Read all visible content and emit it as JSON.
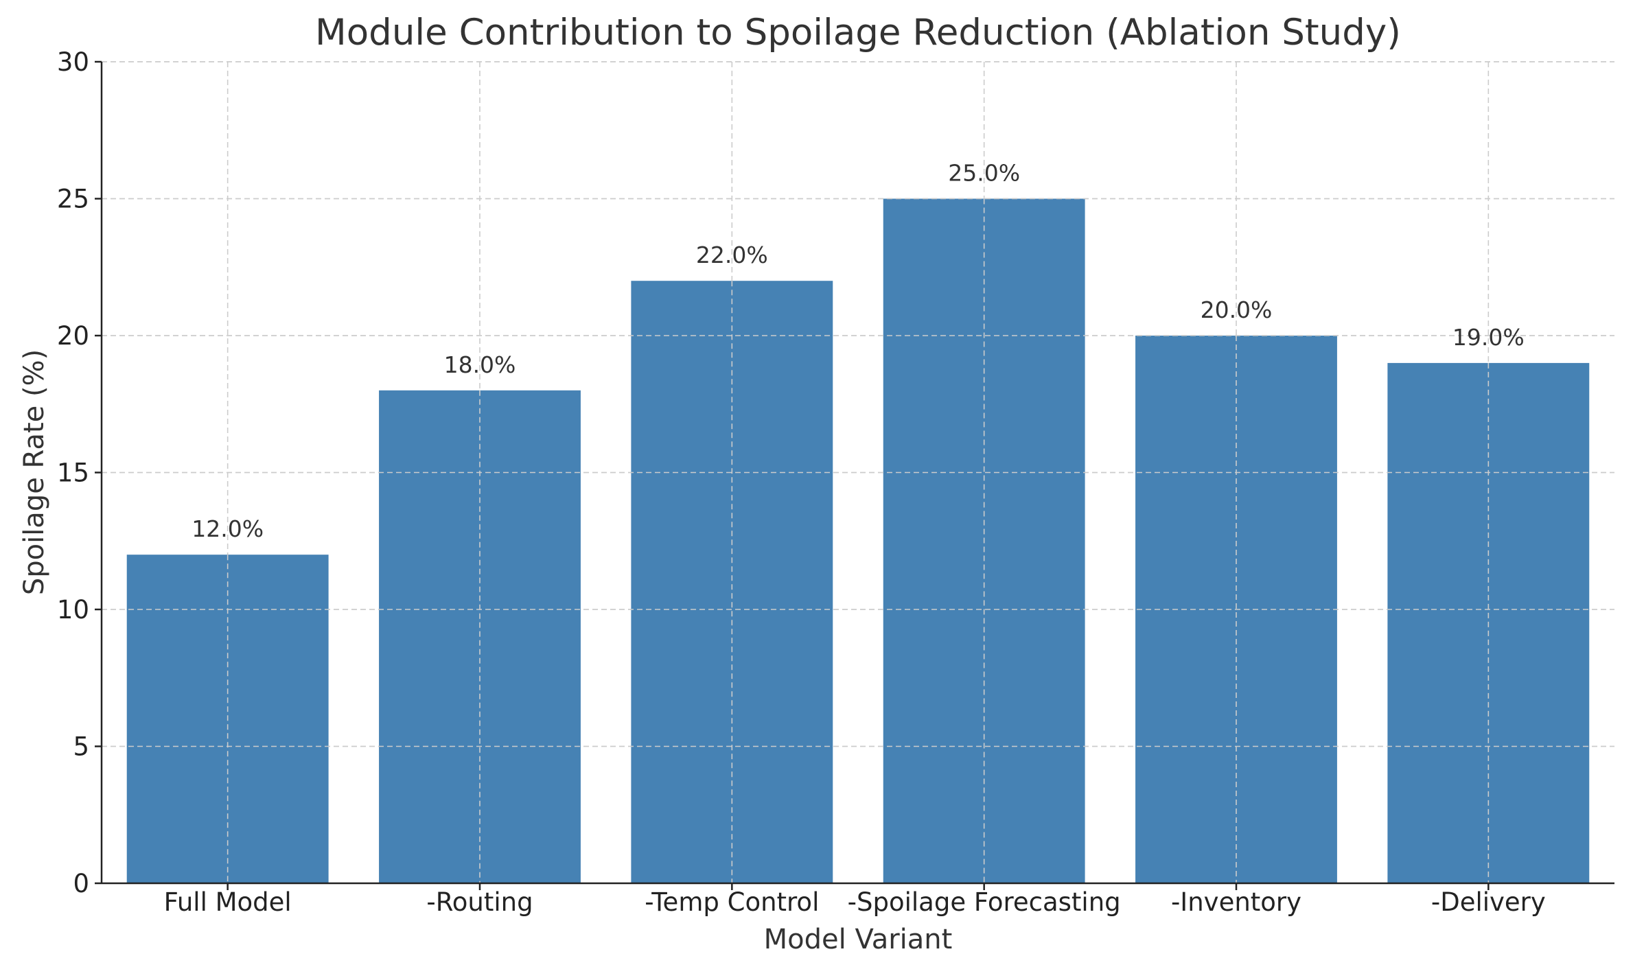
{
  "chart_data": {
    "type": "bar",
    "title": "Module Contribution to Spoilage Reduction (Ablation Study)",
    "xlabel": "Model Variant",
    "ylabel": "Spoilage Rate (%)",
    "categories": [
      "Full Model",
      "-Routing",
      "-Temp Control",
      "-Spoilage Forecasting",
      "-Inventory",
      "-Delivery"
    ],
    "values": [
      12.0,
      18.0,
      22.0,
      25.0,
      20.0,
      19.0
    ],
    "data_labels": [
      "12.0%",
      "18.0%",
      "22.0%",
      "25.0%",
      "20.0%",
      "19.0%"
    ],
    "ylim": [
      0,
      30
    ],
    "yticks": [
      0,
      5,
      10,
      15,
      20,
      25,
      30
    ],
    "ytick_labels": [
      "0",
      "5",
      "10",
      "15",
      "20",
      "25",
      "30"
    ],
    "grid": true,
    "bar_color": "#4682b4"
  }
}
